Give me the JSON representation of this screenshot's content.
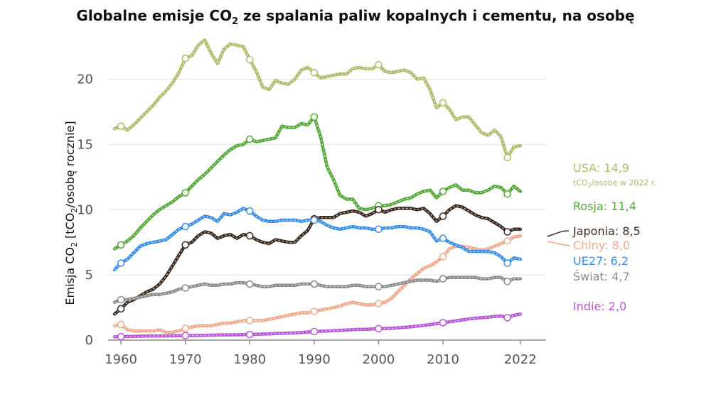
{
  "chart_data": {
    "type": "line",
    "title": {
      "prefix": "Globalne emisje CO",
      "subscript": "2",
      "suffix": " ze spalania paliw kopalnych i cementu, na osobę"
    },
    "ylabel": {
      "prefix": "Emisja CO",
      "subscript": "2",
      "middle": " [tCO",
      "subscript2": "2",
      "suffix": "/osobę rocznie]"
    },
    "xlim": [
      1958,
      2026
    ],
    "ylim": [
      0,
      24
    ],
    "x_ticks": [
      1960,
      1970,
      1980,
      1990,
      2000,
      2010,
      2022
    ],
    "y_ticks": [
      0,
      5,
      10,
      15,
      20
    ],
    "grid": true,
    "series": [
      {
        "name": "USA",
        "value_label": "14,9",
        "color": "#b3b96d",
        "note": {
          "prefix": "tCO",
          "subscript": "2",
          "suffix": "/osobę w 2022 r."
        },
        "x": [
          1959,
          1960,
          1961,
          1962,
          1963,
          1964,
          1965,
          1966,
          1967,
          1968,
          1969,
          1970,
          1971,
          1972,
          1973,
          1974,
          1975,
          1976,
          1977,
          1978,
          1979,
          1980,
          1981,
          1982,
          1983,
          1984,
          1985,
          1986,
          1987,
          1988,
          1989,
          1990,
          1991,
          1992,
          1993,
          1994,
          1995,
          1996,
          1997,
          1998,
          1999,
          2000,
          2001,
          2002,
          2003,
          2004,
          2005,
          2006,
          2007,
          2008,
          2009,
          2010,
          2011,
          2012,
          2013,
          2014,
          2015,
          2016,
          2017,
          2018,
          2019,
          2020,
          2021,
          2022
        ],
        "y": [
          16.2,
          16.4,
          16.1,
          16.5,
          17.0,
          17.5,
          18.0,
          18.6,
          19.1,
          19.7,
          20.5,
          21.6,
          21.8,
          22.6,
          23.0,
          22.0,
          21.2,
          22.3,
          22.7,
          22.6,
          22.5,
          21.5,
          20.6,
          19.4,
          19.2,
          19.9,
          19.7,
          19.6,
          20.0,
          20.7,
          20.9,
          20.5,
          20.1,
          20.2,
          20.3,
          20.4,
          20.4,
          20.8,
          20.9,
          20.8,
          20.8,
          21.1,
          20.6,
          20.5,
          20.6,
          20.7,
          20.5,
          20.0,
          20.1,
          19.2,
          17.8,
          18.2,
          17.7,
          16.9,
          17.1,
          17.1,
          16.5,
          15.9,
          15.7,
          16.1,
          15.6,
          14.0,
          14.8,
          14.9
        ],
        "markers": [
          1960,
          1970,
          1980,
          1990,
          2000,
          2010,
          2020
        ]
      },
      {
        "name": "Rosja",
        "value_label": "11,4",
        "color": "#55a83a",
        "x": [
          1959,
          1960,
          1961,
          1962,
          1963,
          1964,
          1965,
          1966,
          1967,
          1968,
          1969,
          1970,
          1971,
          1972,
          1973,
          1974,
          1975,
          1976,
          1977,
          1978,
          1979,
          1980,
          1981,
          1982,
          1983,
          1984,
          1985,
          1986,
          1987,
          1988,
          1989,
          1990,
          1991,
          1992,
          1993,
          1994,
          1995,
          1996,
          1997,
          1998,
          1999,
          2000,
          2001,
          2002,
          2003,
          2004,
          2005,
          2006,
          2007,
          2008,
          2009,
          2010,
          2011,
          2012,
          2013,
          2014,
          2015,
          2016,
          2017,
          2018,
          2019,
          2020,
          2021,
          2022
        ],
        "y": [
          7.0,
          7.3,
          7.6,
          8.0,
          8.6,
          9.1,
          9.6,
          10.0,
          10.3,
          10.6,
          11.0,
          11.3,
          11.8,
          12.3,
          12.7,
          13.2,
          13.7,
          14.2,
          14.6,
          14.9,
          15.0,
          15.4,
          15.2,
          15.3,
          15.4,
          15.5,
          16.4,
          16.3,
          16.3,
          16.6,
          16.5,
          17.1,
          15.6,
          13.3,
          12.3,
          11.1,
          10.8,
          10.8,
          10.1,
          10.0,
          10.1,
          10.3,
          10.3,
          10.4,
          10.6,
          10.8,
          10.9,
          11.2,
          11.4,
          11.5,
          10.9,
          11.4,
          11.7,
          11.9,
          11.5,
          11.5,
          11.3,
          11.3,
          11.5,
          11.8,
          11.7,
          11.2,
          11.8,
          11.4
        ],
        "markers": [
          1960,
          1970,
          1980,
          1990,
          2000,
          2010,
          2020
        ]
      },
      {
        "name": "Japonia",
        "value_label": "8,5",
        "color": "#3b2a20",
        "x": [
          1959,
          1960,
          1961,
          1962,
          1963,
          1964,
          1965,
          1966,
          1967,
          1968,
          1969,
          1970,
          1971,
          1972,
          1973,
          1974,
          1975,
          1976,
          1977,
          1978,
          1979,
          1980,
          1981,
          1982,
          1983,
          1984,
          1985,
          1986,
          1987,
          1988,
          1989,
          1990,
          1991,
          1992,
          1993,
          1994,
          1995,
          1996,
          1997,
          1998,
          1999,
          2000,
          2001,
          2002,
          2003,
          2004,
          2005,
          2006,
          2007,
          2008,
          2009,
          2010,
          2011,
          2012,
          2013,
          2014,
          2015,
          2016,
          2017,
          2018,
          2019,
          2020,
          2021,
          2022
        ],
        "y": [
          2.0,
          2.4,
          2.9,
          3.1,
          3.4,
          3.7,
          3.9,
          4.3,
          4.9,
          5.7,
          6.5,
          7.3,
          7.5,
          8.0,
          8.3,
          8.2,
          7.8,
          8.0,
          8.1,
          7.8,
          8.1,
          8.0,
          7.7,
          7.5,
          7.4,
          7.7,
          7.6,
          7.5,
          7.5,
          8.0,
          8.4,
          9.3,
          9.4,
          9.4,
          9.4,
          9.7,
          9.8,
          9.9,
          9.8,
          9.5,
          9.7,
          10.0,
          9.8,
          10.0,
          10.1,
          10.1,
          10.1,
          10.0,
          10.1,
          9.7,
          9.1,
          9.5,
          10.0,
          10.3,
          10.2,
          9.9,
          9.6,
          9.4,
          9.3,
          9.0,
          8.7,
          8.3,
          8.5,
          8.5
        ],
        "markers": [
          1960,
          1970,
          1980,
          1990,
          2000,
          2010,
          2020
        ]
      },
      {
        "name": "Chiny",
        "value_label": "8,0",
        "color": "#f0a98c",
        "x": [
          1959,
          1960,
          1961,
          1962,
          1963,
          1964,
          1965,
          1966,
          1967,
          1968,
          1969,
          1970,
          1971,
          1972,
          1973,
          1974,
          1975,
          1976,
          1977,
          1978,
          1979,
          1980,
          1981,
          1982,
          1983,
          1984,
          1985,
          1986,
          1987,
          1988,
          1989,
          1990,
          1991,
          1992,
          1993,
          1994,
          1995,
          1996,
          1997,
          1998,
          1999,
          2000,
          2001,
          2002,
          2003,
          2004,
          2005,
          2006,
          2007,
          2008,
          2009,
          2010,
          2011,
          2012,
          2013,
          2014,
          2015,
          2016,
          2017,
          2018,
          2019,
          2020,
          2021,
          2022
        ],
        "y": [
          1.1,
          1.2,
          0.8,
          0.7,
          0.7,
          0.7,
          0.7,
          0.8,
          0.6,
          0.6,
          0.7,
          0.9,
          1.0,
          1.1,
          1.1,
          1.1,
          1.2,
          1.3,
          1.3,
          1.4,
          1.5,
          1.5,
          1.5,
          1.5,
          1.6,
          1.7,
          1.8,
          1.9,
          2.0,
          2.1,
          2.1,
          2.2,
          2.3,
          2.4,
          2.5,
          2.6,
          2.8,
          2.9,
          2.8,
          2.7,
          2.7,
          2.8,
          2.9,
          3.2,
          3.7,
          4.2,
          4.7,
          5.1,
          5.5,
          5.7,
          6.0,
          6.4,
          7.0,
          7.2,
          7.2,
          7.1,
          7.0,
          6.9,
          7.0,
          7.2,
          7.4,
          7.6,
          7.9,
          8.0
        ],
        "markers": [
          1960,
          1970,
          1980,
          1990,
          2000,
          2010,
          2020
        ]
      },
      {
        "name": "UE27",
        "value_label": "6,2",
        "color": "#3a8ee6",
        "x": [
          1959,
          1960,
          1961,
          1962,
          1963,
          1964,
          1965,
          1966,
          1967,
          1968,
          1969,
          1970,
          1971,
          1972,
          1973,
          1974,
          1975,
          1976,
          1977,
          1978,
          1979,
          1980,
          1981,
          1982,
          1983,
          1984,
          1985,
          1986,
          1987,
          1988,
          1989,
          1990,
          1991,
          1992,
          1993,
          1994,
          1995,
          1996,
          1997,
          1998,
          1999,
          2000,
          2001,
          2002,
          2003,
          2004,
          2005,
          2006,
          2007,
          2008,
          2009,
          2010,
          2011,
          2012,
          2013,
          2014,
          2015,
          2016,
          2017,
          2018,
          2019,
          2020,
          2021,
          2022
        ],
        "y": [
          5.4,
          5.9,
          6.2,
          6.7,
          7.2,
          7.4,
          7.5,
          7.6,
          7.7,
          8.1,
          8.5,
          8.7,
          8.9,
          9.2,
          9.5,
          9.4,
          9.1,
          9.7,
          9.6,
          9.8,
          10.1,
          9.9,
          9.5,
          9.2,
          9.1,
          9.1,
          9.2,
          9.2,
          9.2,
          9.1,
          9.2,
          9.2,
          9.1,
          8.8,
          8.6,
          8.5,
          8.6,
          8.7,
          8.6,
          8.6,
          8.5,
          8.5,
          8.6,
          8.6,
          8.7,
          8.7,
          8.6,
          8.6,
          8.5,
          8.3,
          7.6,
          7.8,
          7.5,
          7.3,
          7.1,
          6.8,
          6.8,
          6.8,
          6.8,
          6.7,
          6.4,
          5.9,
          6.3,
          6.2
        ],
        "markers": [
          1960,
          1970,
          1980,
          1990,
          2000,
          2010,
          2020
        ]
      },
      {
        "name": "Świat",
        "value_label": "4,7",
        "color": "#8c8c8c",
        "x": [
          1959,
          1960,
          1961,
          1962,
          1963,
          1964,
          1965,
          1966,
          1967,
          1968,
          1969,
          1970,
          1971,
          1972,
          1973,
          1974,
          1975,
          1976,
          1977,
          1978,
          1979,
          1980,
          1981,
          1982,
          1983,
          1984,
          1985,
          1986,
          1987,
          1988,
          1989,
          1990,
          1991,
          1992,
          1993,
          1994,
          1995,
          1996,
          1997,
          1998,
          1999,
          2000,
          2001,
          2002,
          2003,
          2004,
          2005,
          2006,
          2007,
          2008,
          2009,
          2010,
          2011,
          2012,
          2013,
          2014,
          2015,
          2016,
          2017,
          2018,
          2019,
          2020,
          2021,
          2022
        ],
        "y": [
          2.9,
          3.1,
          3.1,
          3.2,
          3.3,
          3.4,
          3.5,
          3.5,
          3.6,
          3.7,
          3.9,
          4.0,
          4.1,
          4.2,
          4.3,
          4.2,
          4.2,
          4.3,
          4.3,
          4.4,
          4.4,
          4.3,
          4.2,
          4.1,
          4.1,
          4.2,
          4.2,
          4.2,
          4.2,
          4.3,
          4.3,
          4.3,
          4.2,
          4.1,
          4.1,
          4.1,
          4.1,
          4.2,
          4.2,
          4.1,
          4.1,
          4.1,
          4.1,
          4.2,
          4.3,
          4.4,
          4.5,
          4.6,
          4.6,
          4.6,
          4.5,
          4.7,
          4.8,
          4.8,
          4.8,
          4.8,
          4.8,
          4.7,
          4.7,
          4.8,
          4.8,
          4.5,
          4.7,
          4.7
        ],
        "markers": [
          1960,
          1970,
          1980,
          1990,
          2000,
          2010,
          2020
        ]
      },
      {
        "name": "Indie",
        "value_label": "2,0",
        "color": "#b858d8",
        "x": [
          1959,
          1960,
          1961,
          1962,
          1963,
          1964,
          1965,
          1966,
          1967,
          1968,
          1969,
          1970,
          1971,
          1972,
          1973,
          1974,
          1975,
          1976,
          1977,
          1978,
          1979,
          1980,
          1981,
          1982,
          1983,
          1984,
          1985,
          1986,
          1987,
          1988,
          1989,
          1990,
          1991,
          1992,
          1993,
          1994,
          1995,
          1996,
          1997,
          1998,
          1999,
          2000,
          2001,
          2002,
          2003,
          2004,
          2005,
          2006,
          2007,
          2008,
          2009,
          2010,
          2011,
          2012,
          2013,
          2014,
          2015,
          2016,
          2017,
          2018,
          2019,
          2020,
          2021,
          2022
        ],
        "y": [
          0.25,
          0.27,
          0.28,
          0.29,
          0.3,
          0.31,
          0.32,
          0.32,
          0.32,
          0.33,
          0.34,
          0.35,
          0.35,
          0.36,
          0.37,
          0.38,
          0.39,
          0.4,
          0.41,
          0.41,
          0.42,
          0.43,
          0.45,
          0.46,
          0.48,
          0.5,
          0.52,
          0.54,
          0.56,
          0.59,
          0.62,
          0.65,
          0.68,
          0.7,
          0.72,
          0.75,
          0.78,
          0.8,
          0.82,
          0.83,
          0.85,
          0.88,
          0.89,
          0.91,
          0.94,
          0.98,
          1.02,
          1.07,
          1.13,
          1.19,
          1.26,
          1.34,
          1.4,
          1.48,
          1.55,
          1.62,
          1.68,
          1.72,
          1.76,
          1.82,
          1.85,
          1.72,
          1.9,
          2.0
        ],
        "markers": [
          1960,
          1970,
          1980,
          1990,
          2000,
          2010,
          2020
        ]
      }
    ]
  }
}
